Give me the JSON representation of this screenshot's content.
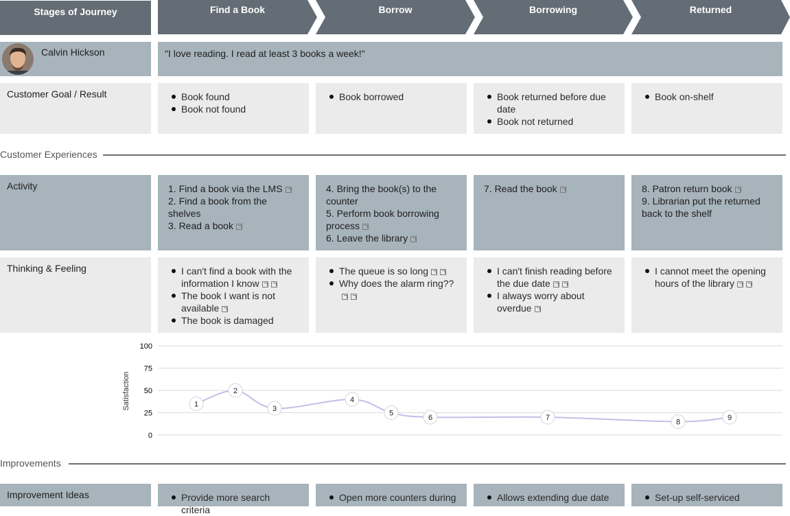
{
  "header": {
    "stages_label": "Stages of Journey",
    "stages": [
      "Find a Book",
      "Borrow",
      "Borrowing",
      "Returned"
    ]
  },
  "persona": {
    "name": "Calvin Hickson",
    "quote": "\"I love reading. I read at least 3 books a week!\""
  },
  "goal": {
    "label": "Customer Goal / Result",
    "columns": [
      [
        "Book found",
        "Book not found"
      ],
      [
        "Book borrowed"
      ],
      [
        "Book returned before due date",
        "Book not returned"
      ],
      [
        "Book on-shelf"
      ]
    ]
  },
  "sections": {
    "experiences": "Customer Experiences",
    "improvements": "Improvements"
  },
  "activity": {
    "label": "Activity",
    "columns": [
      [
        "1. Find a book via the LMS",
        "2. Find a book from the shelves",
        "3. Read a book"
      ],
      [
        "4. Bring the book(s) to the counter",
        "5. Perform book borrowing process",
        "6. Leave the library"
      ],
      [
        "7. Read the book"
      ],
      [
        "8. Patron return book",
        "9. Librarian put the returned back to the shelf"
      ]
    ]
  },
  "thinking": {
    "label": "Thinking & Feeling",
    "columns": [
      [
        "I can't find a book with the information I know",
        "The book I want is not available",
        "The book is damaged"
      ],
      [
        "The queue is so long",
        "Why does the alarm ring??"
      ],
      [
        "I can't finish reading before the due date",
        "I always worry about overdue"
      ],
      [
        "I cannot meet the opening hours of the library"
      ]
    ]
  },
  "improvement": {
    "label": "Improvement Ideas",
    "columns": [
      [
        "Provide more search criteria"
      ],
      [
        "Open more counters during"
      ],
      [
        "Allows extending due date"
      ],
      [
        "Set-up self-serviced"
      ]
    ]
  },
  "chart_data": {
    "type": "line",
    "ylabel": "Satisfaction",
    "ylim": [
      0,
      100
    ],
    "yticks": [
      0,
      25,
      50,
      75,
      100
    ],
    "grid": true,
    "points": [
      {
        "label": "1",
        "value": 35
      },
      {
        "label": "2",
        "value": 50
      },
      {
        "label": "3",
        "value": 30
      },
      {
        "label": "4",
        "value": 40
      },
      {
        "label": "5",
        "value": 25
      },
      {
        "label": "6",
        "value": 20
      },
      {
        "label": "7",
        "value": 20
      },
      {
        "label": "8",
        "value": 15
      },
      {
        "label": "9",
        "value": 20
      }
    ],
    "line_color": "#c3bde8"
  }
}
